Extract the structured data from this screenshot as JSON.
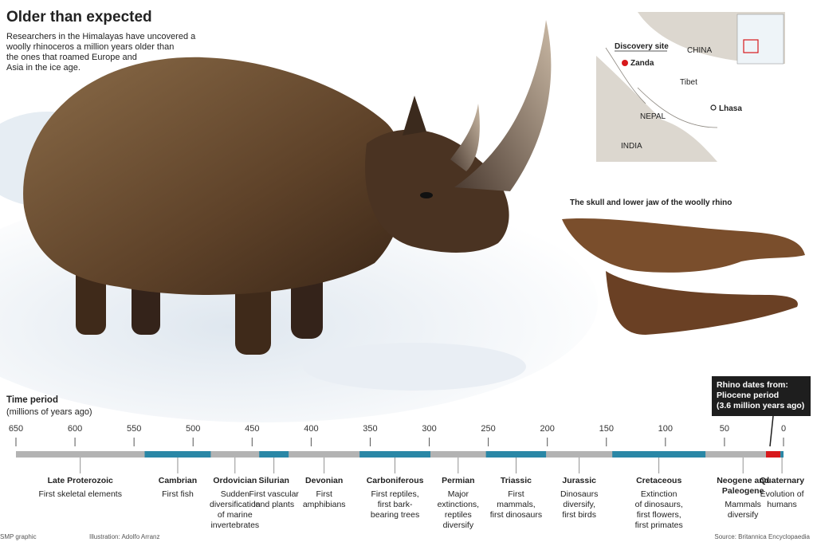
{
  "header": {
    "title": "Older than expected",
    "intro": [
      "Researchers in the Himalayas have uncovered a",
      "woolly rhinoceros a million years older than",
      "the ones that roamed Europe and",
      "Asia in the ice age."
    ]
  },
  "map": {
    "discovery_label": "Discovery site",
    "site": "Zanda",
    "country": "CHINA",
    "region": "Tibet",
    "city": "Lhasa",
    "nepal": "NEPAL",
    "india": "INDIA"
  },
  "skull": {
    "caption": "The skull and lower jaw of the woolly rhino"
  },
  "timeline": {
    "title": "Time period",
    "unit": "(millions of years ago)",
    "ticks": [
      650,
      600,
      550,
      500,
      450,
      400,
      350,
      300,
      250,
      200,
      150,
      100,
      50,
      0
    ],
    "callout": [
      "Rhino dates from:",
      "Pliocene period",
      "(3.6 million years ago)"
    ],
    "highlight_color": "#d7191c",
    "periods": [
      {
        "name": "Late Proterozoic",
        "start": 650,
        "end": 541,
        "color": "#b3b3b3",
        "description": [
          "First skeletal elements"
        ]
      },
      {
        "name": "Cambrian",
        "start": 541,
        "end": 485,
        "color": "#2a87a6",
        "description": [
          "First fish"
        ]
      },
      {
        "name": "Ordovician",
        "start": 485,
        "end": 444,
        "color": "#b3b3b3",
        "description": [
          "Sudden",
          "diversification",
          "of marine",
          "invertebrates"
        ]
      },
      {
        "name": "Silurian",
        "start": 444,
        "end": 419,
        "color": "#2a87a6",
        "description": [
          "First vascular",
          "land plants"
        ]
      },
      {
        "name": "Devonian",
        "start": 419,
        "end": 359,
        "color": "#b3b3b3",
        "description": [
          "First",
          "amphibians"
        ]
      },
      {
        "name": "Carboniferous",
        "start": 359,
        "end": 299,
        "color": "#2a87a6",
        "description": [
          "First reptiles,",
          "first bark-",
          "bearing trees"
        ]
      },
      {
        "name": "Permian",
        "start": 299,
        "end": 252,
        "color": "#b3b3b3",
        "description": [
          "Major",
          "extinctions,",
          "reptiles",
          "diversify"
        ]
      },
      {
        "name": "Triassic",
        "start": 252,
        "end": 201,
        "color": "#2a87a6",
        "description": [
          "First",
          "mammals,",
          "first dinosaurs"
        ]
      },
      {
        "name": "Jurassic",
        "start": 201,
        "end": 145,
        "color": "#b3b3b3",
        "description": [
          "Dinosaurs",
          "diversify,",
          "first birds"
        ]
      },
      {
        "name": "Cretaceous",
        "start": 145,
        "end": 66,
        "color": "#2a87a6",
        "description": [
          "Extinction",
          "of dinosaurs,",
          "first flowers,",
          "first primates"
        ]
      },
      {
        "name": "Neogene and",
        "name2": "Paleogene",
        "start": 66,
        "end": 2.6,
        "color": "#b3b3b3",
        "description": [
          "Mammals",
          "diversify"
        ]
      },
      {
        "name": "Quaternary",
        "start": 2.6,
        "end": 0,
        "color": "#2a87a6",
        "description": [
          "Evolution of",
          "humans"
        ]
      }
    ]
  },
  "footer": {
    "left": "SMP graphic",
    "middle": "Illustration: Adolfo Arranz",
    "right": "Source: Britannica Encyclopaedia"
  }
}
